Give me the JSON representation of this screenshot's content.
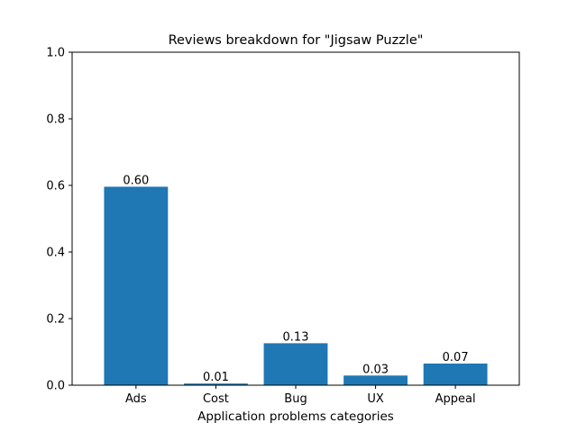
{
  "chart_data": {
    "type": "bar",
    "title": "Reviews breakdown for \"Jigsaw Puzzle\"",
    "xlabel": "Application problems categories",
    "ylabel": "",
    "categories": [
      "Ads",
      "Cost",
      "Bug",
      "UX",
      "Appeal"
    ],
    "values": [
      0.596,
      0.005,
      0.126,
      0.029,
      0.065
    ],
    "data_labels": [
      "0.60",
      "0.01",
      "0.13",
      "0.03",
      "0.07"
    ],
    "ylim": [
      0,
      1.0
    ],
    "yticks": [
      "0.0",
      "0.2",
      "0.4",
      "0.6",
      "0.8",
      "1.0"
    ],
    "bar_color": "#1f77b4",
    "grid": false,
    "legend": "none"
  }
}
